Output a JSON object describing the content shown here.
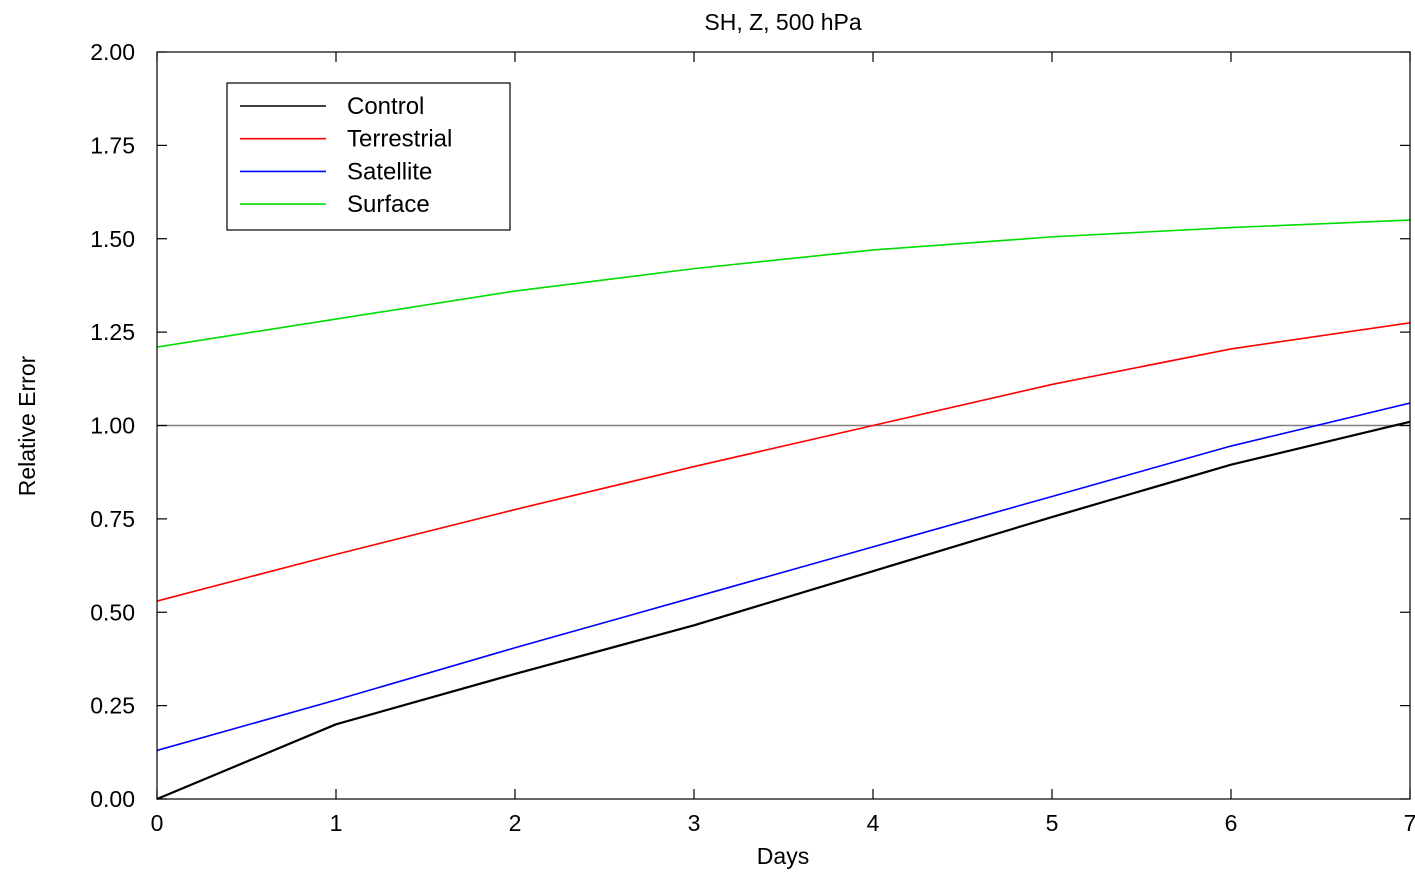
{
  "chart_data": {
    "type": "line",
    "title": "SH, Z, 500 hPa",
    "xlabel": "Days",
    "ylabel": "Relative Error",
    "xlim": [
      0,
      7
    ],
    "ylim": [
      0,
      2
    ],
    "x_ticks": [
      0,
      1,
      2,
      3,
      4,
      5,
      6,
      7
    ],
    "x_tick_labels": [
      "0",
      "1",
      "2",
      "3",
      "4",
      "5",
      "6",
      "7"
    ],
    "y_ticks": [
      0,
      0.25,
      0.5,
      0.75,
      1.0,
      1.25,
      1.5,
      1.75,
      2.0
    ],
    "y_tick_labels": [
      "0.00",
      "0.25",
      "0.50",
      "0.75",
      "1.00",
      "1.25",
      "1.50",
      "1.75",
      "2.00"
    ],
    "grid": false,
    "legend_position": "top-left",
    "reference_line": {
      "y": 1.0,
      "color": "#808080"
    },
    "x": [
      0,
      1,
      2,
      3,
      4,
      5,
      6,
      7
    ],
    "series": [
      {
        "name": "Control",
        "color": "#000000",
        "values": [
          0.0,
          0.2,
          0.335,
          0.465,
          0.61,
          0.755,
          0.895,
          1.01
        ]
      },
      {
        "name": "Terrestrial",
        "color": "#ff0000",
        "values": [
          0.53,
          0.655,
          0.775,
          0.89,
          1.0,
          1.11,
          1.205,
          1.275
        ]
      },
      {
        "name": "Satellite",
        "color": "#0000ff",
        "values": [
          0.13,
          0.265,
          0.405,
          0.54,
          0.675,
          0.81,
          0.945,
          1.06
        ]
      },
      {
        "name": "Surface",
        "color": "#00dd00",
        "values": [
          1.21,
          1.285,
          1.36,
          1.42,
          1.47,
          1.505,
          1.53,
          1.55
        ]
      }
    ]
  }
}
